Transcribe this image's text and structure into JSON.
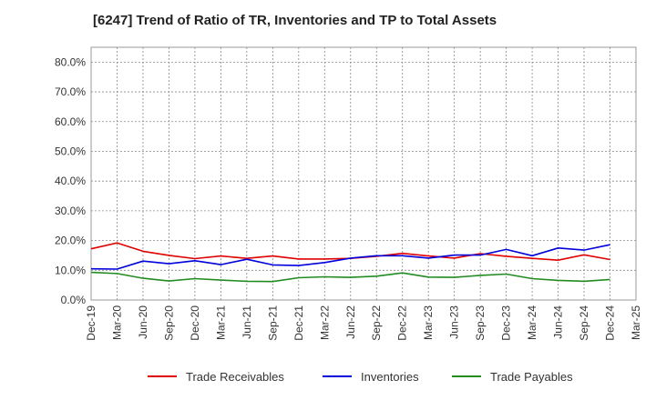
{
  "title": "[6247]  Trend of Ratio of TR, Inventories and TP to Total Assets",
  "chart_data": {
    "type": "line",
    "title": "[6247]  Trend of Ratio of TR, Inventories and TP to Total Assets",
    "xlabel": "",
    "ylabel": "",
    "ylim": [
      0,
      85
    ],
    "yticks": [
      0,
      10,
      20,
      30,
      40,
      50,
      60,
      70,
      80
    ],
    "ytick_labels": [
      "0.0%",
      "10.0%",
      "20.0%",
      "30.0%",
      "40.0%",
      "50.0%",
      "60.0%",
      "70.0%",
      "80.0%"
    ],
    "x_tick_labels": [
      "Dec-19",
      "Mar-20",
      "Jun-20",
      "Sep-20",
      "Dec-20",
      "Mar-21",
      "Jun-21",
      "Sep-21",
      "Dec-21",
      "Mar-22",
      "Jun-22",
      "Sep-22",
      "Dec-22",
      "Mar-23",
      "Jun-23",
      "Sep-23",
      "Dec-23",
      "Mar-24",
      "Jun-24",
      "Sep-24",
      "Dec-24",
      "Mar-25"
    ],
    "x": [
      "Dec-19",
      "Mar-20",
      "Jun-20",
      "Sep-20",
      "Dec-20",
      "Mar-21",
      "Jun-21",
      "Sep-21",
      "Dec-21",
      "Mar-22",
      "Jun-22",
      "Sep-22",
      "Dec-22",
      "Mar-23",
      "Jun-23",
      "Sep-23",
      "Dec-23",
      "Mar-24",
      "Jun-24",
      "Sep-24",
      "Dec-24"
    ],
    "grid": true,
    "legend_position": "bottom",
    "series": [
      {
        "name": "Trade Receivables",
        "color": "#e00000",
        "values": [
          17.2,
          19.2,
          16.4,
          15.0,
          13.9,
          14.8,
          14.0,
          14.8,
          13.8,
          13.8,
          14.0,
          14.7,
          15.7,
          14.8,
          14.1,
          15.6,
          14.7,
          14.0,
          13.4,
          15.2,
          13.6
        ]
      },
      {
        "name": "Inventories",
        "color": "#0000dd",
        "values": [
          10.5,
          10.4,
          13.1,
          12.2,
          13.2,
          11.9,
          13.7,
          11.8,
          11.6,
          12.6,
          14.1,
          14.9,
          14.9,
          14.1,
          15.1,
          15.1,
          17.0,
          14.9,
          17.5,
          16.8,
          18.6
        ]
      },
      {
        "name": "Trade Payables",
        "color": "#228b22",
        "values": [
          9.3,
          8.9,
          7.3,
          6.4,
          7.2,
          6.7,
          6.3,
          6.2,
          7.5,
          7.8,
          7.6,
          8.0,
          9.1,
          7.7,
          7.6,
          8.3,
          8.7,
          7.2,
          6.6,
          6.3,
          6.9
        ]
      }
    ]
  }
}
